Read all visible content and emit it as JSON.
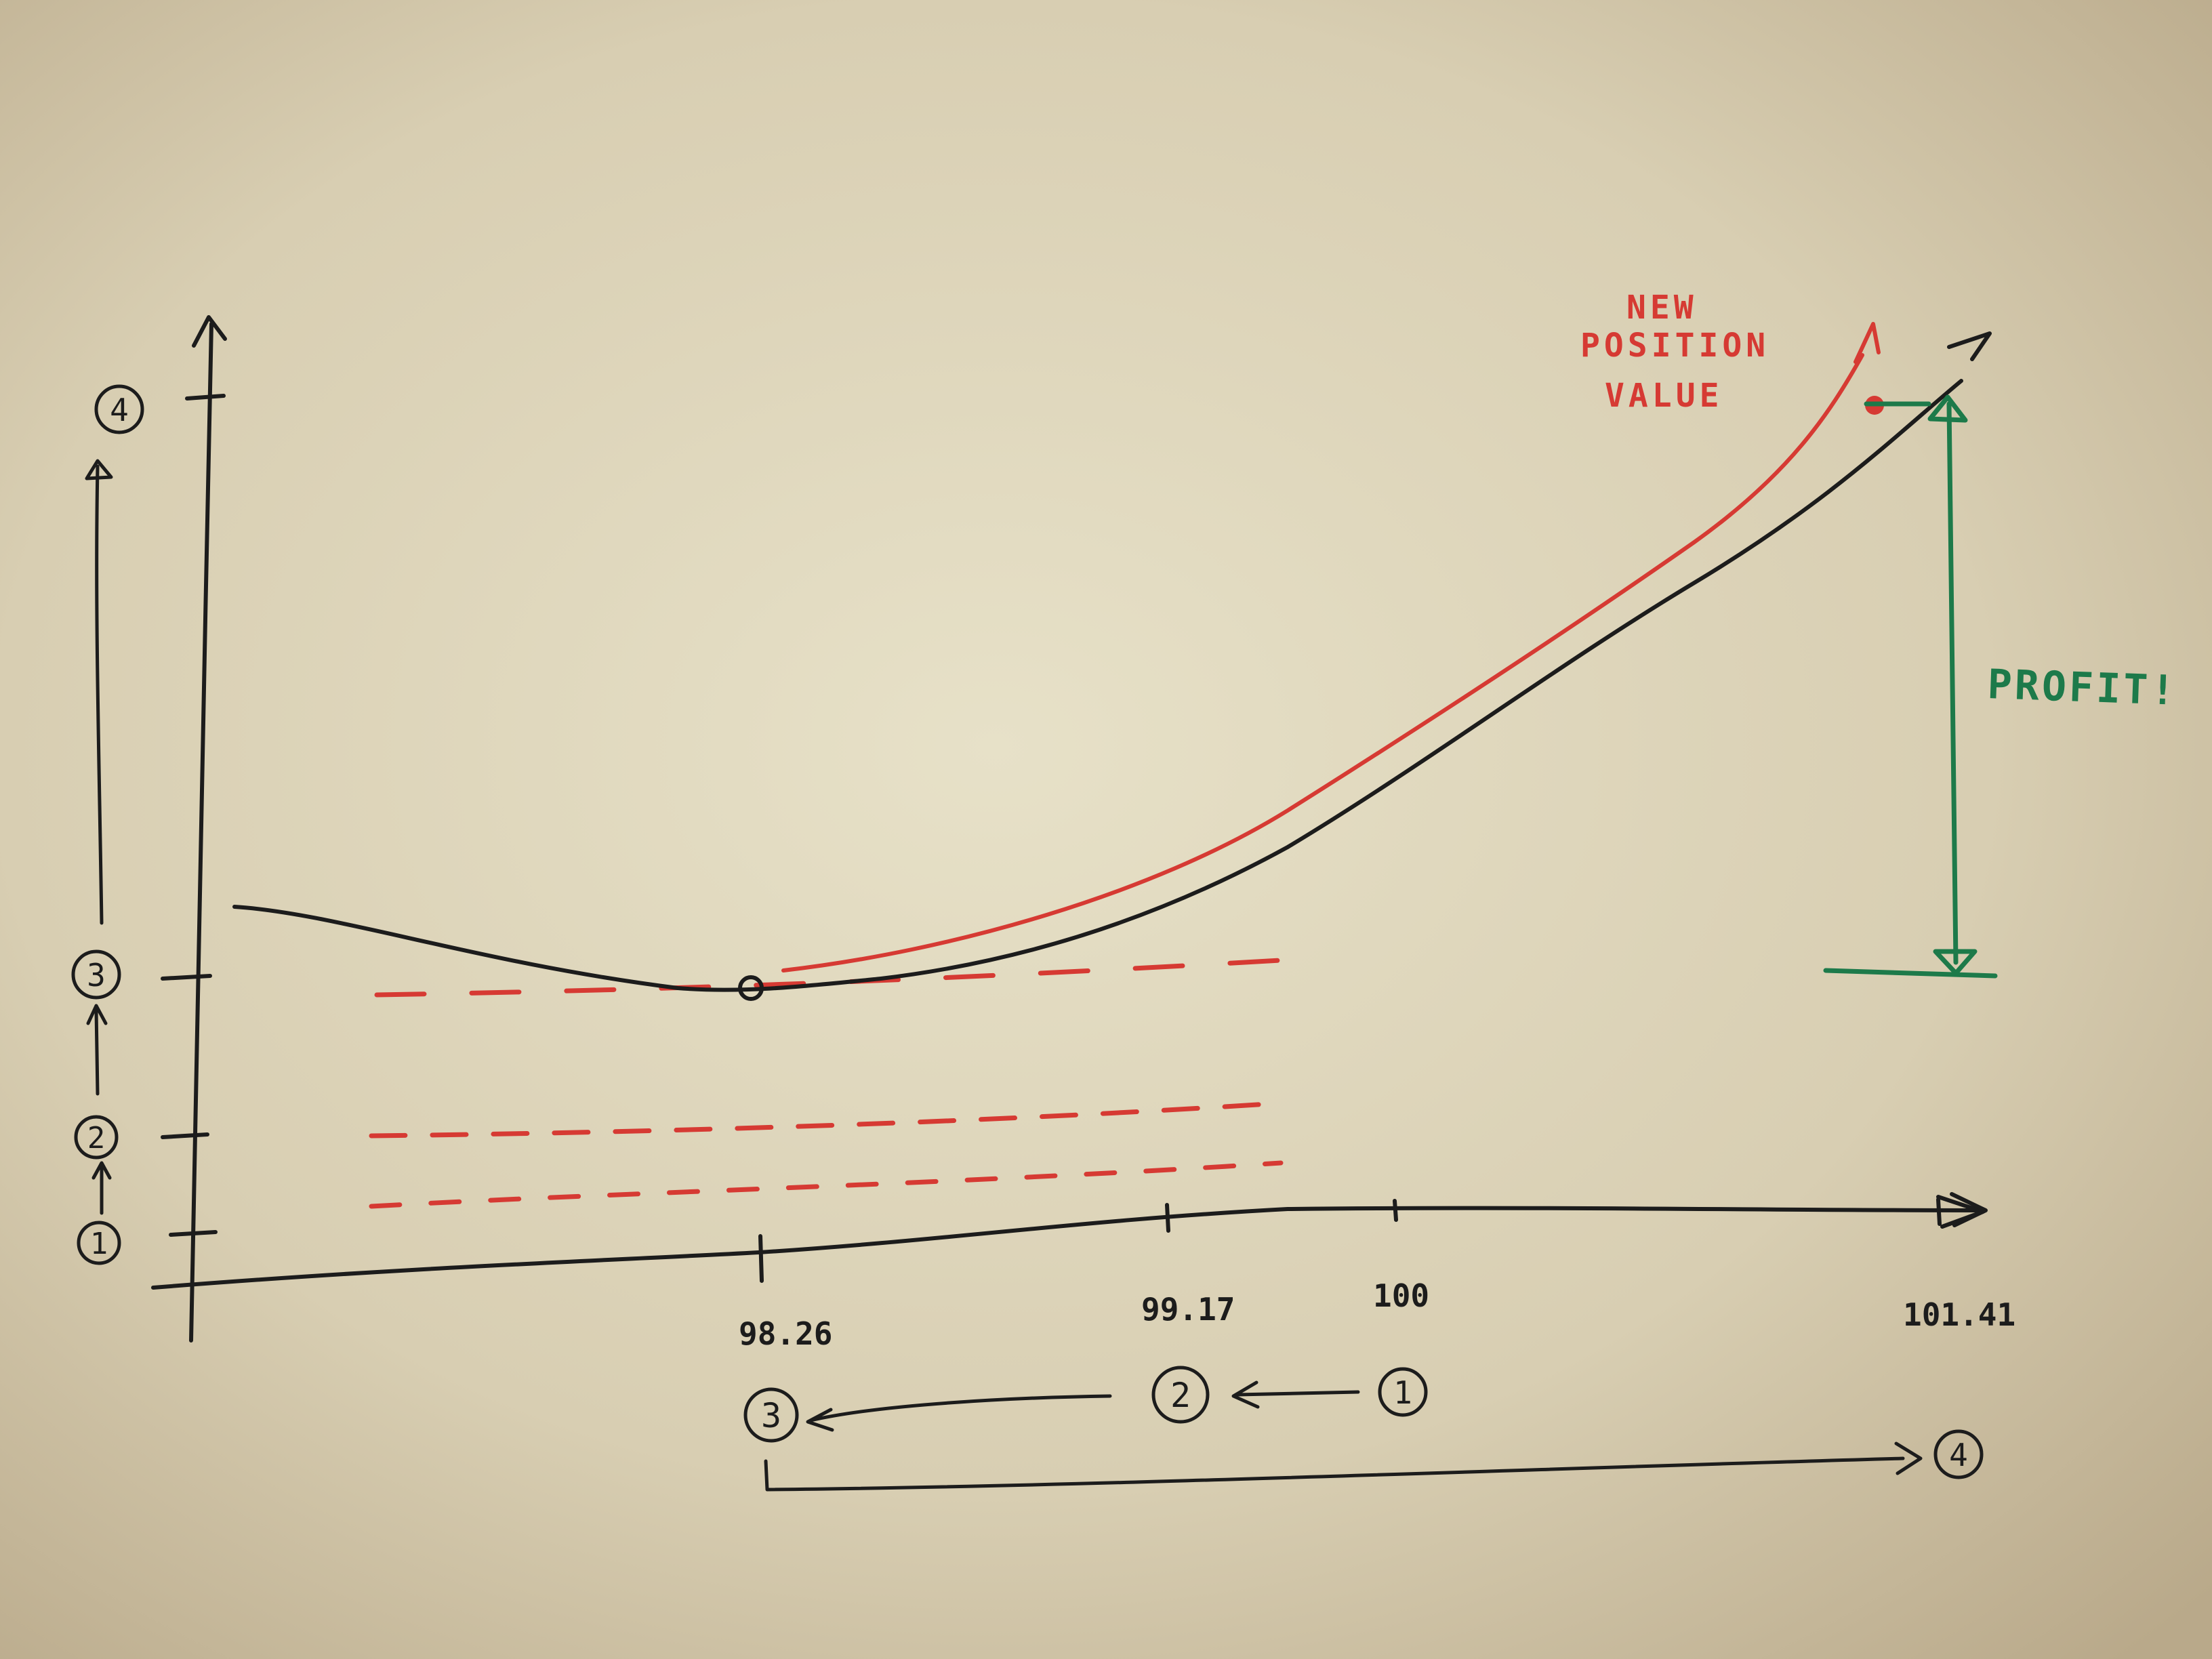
{
  "colors": {
    "paper_light": "#e7e1c8",
    "paper_dark": "#b9a98a",
    "ink_black": "#1c1c1c",
    "ink_red": "#d63a33",
    "ink_green": "#1d7a4a"
  },
  "x_axis": {
    "tick_labels": [
      "98.26",
      "99.17",
      "100",
      "101.41"
    ]
  },
  "y_axis": {
    "markers": [
      "1",
      "2",
      "3",
      "4"
    ]
  },
  "bottom_sequence": {
    "markers": [
      "3",
      "2",
      "1",
      "4"
    ]
  },
  "annotations": {
    "new_position_value": [
      "NEW",
      "POSITION",
      "VALUE"
    ],
    "profit": "PROFIT!"
  }
}
